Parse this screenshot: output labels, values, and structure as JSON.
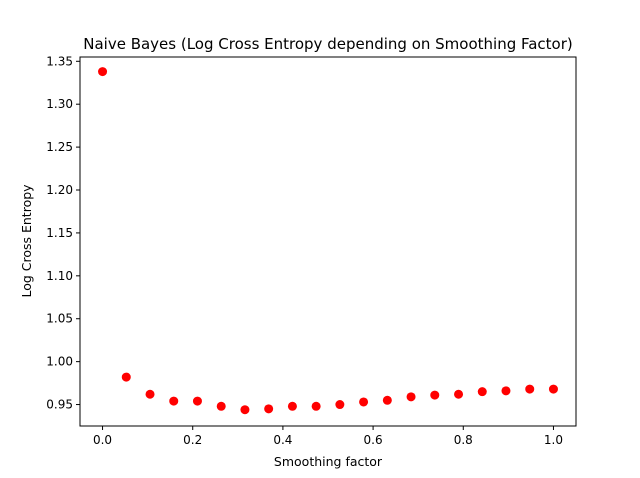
{
  "chart_data": {
    "type": "scatter",
    "title": "Naive Bayes (Log Cross Entropy depending on Smoothing Factor)",
    "xlabel": "Smoothing factor",
    "ylabel": "Log Cross Entropy",
    "xlim": [
      -0.05,
      1.05
    ],
    "ylim": [
      0.925,
      1.355
    ],
    "xticks": [
      0.0,
      0.2,
      0.4,
      0.6,
      0.8,
      1.0
    ],
    "xtick_labels": [
      "0.0",
      "0.2",
      "0.4",
      "0.6",
      "0.8",
      "1.0"
    ],
    "yticks": [
      0.95,
      1.0,
      1.05,
      1.1,
      1.15,
      1.2,
      1.25,
      1.3,
      1.35
    ],
    "ytick_labels": [
      "0.95",
      "1.00",
      "1.05",
      "1.10",
      "1.15",
      "1.20",
      "1.25",
      "1.30",
      "1.35"
    ],
    "grid": false,
    "marker_color": "#ff0000",
    "series": [
      {
        "x": [
          0.0,
          0.0526,
          0.1053,
          0.1579,
          0.2105,
          0.2632,
          0.3158,
          0.3684,
          0.4211,
          0.4737,
          0.5263,
          0.5789,
          0.6316,
          0.6842,
          0.7368,
          0.7895,
          0.8421,
          0.8947,
          0.9474,
          1.0
        ],
        "y": [
          1.338,
          0.982,
          0.962,
          0.954,
          0.954,
          0.948,
          0.944,
          0.945,
          0.948,
          0.948,
          0.95,
          0.953,
          0.955,
          0.959,
          0.961,
          0.962,
          0.965,
          0.966,
          0.968,
          0.968
        ]
      }
    ]
  }
}
